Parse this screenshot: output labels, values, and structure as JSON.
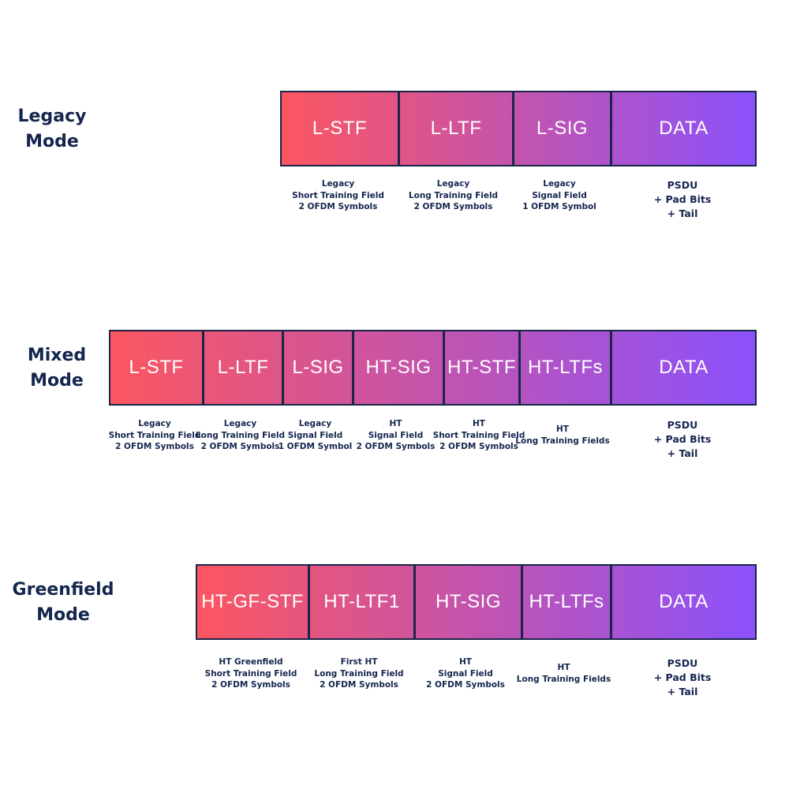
{
  "modes": [
    {
      "label": "Legacy\nMode",
      "fields": [
        {
          "name": "L-STF",
          "desc": "Legacy\nShort Training Field\n2 OFDM Symbols"
        },
        {
          "name": "L-LTF",
          "desc": "Legacy\nLong Training Field\n2 OFDM Symbols"
        },
        {
          "name": "L-SIG",
          "desc": "Legacy\nSignal Field\n1 OFDM Symbol"
        },
        {
          "name": "DATA",
          "desc": "PSDU\n+ Pad Bits\n+ Tail"
        }
      ]
    },
    {
      "label": "Mixed\nMode",
      "fields": [
        {
          "name": "L-STF",
          "desc": "Legacy\nShort Training Field\n2 OFDM Symbols"
        },
        {
          "name": "L-LTF",
          "desc": "Legacy\nLong Training Field\n2 OFDM Symbols"
        },
        {
          "name": "L-SIG",
          "desc": "Legacy\nSignal Field\n1 OFDM Symbol"
        },
        {
          "name": "HT-SIG",
          "desc": "HT\nSignal Field\n2 OFDM Symbols"
        },
        {
          "name": "HT-STF",
          "desc": "HT\nShort Training Field\n2 OFDM Symbols"
        },
        {
          "name": "HT-LTFs",
          "desc": "HT\nLong Training Fields"
        },
        {
          "name": "DATA",
          "desc": "PSDU\n+ Pad Bits\n+ Tail"
        }
      ]
    },
    {
      "label": "Greenfield\nMode",
      "fields": [
        {
          "name": "HT-GF-STF",
          "desc": "HT  Greenfield\nShort Training Field\n2 OFDM Symbols"
        },
        {
          "name": "HT-LTF1",
          "desc": "First HT\nLong Training Field\n2 OFDM Symbols"
        },
        {
          "name": "HT-SIG",
          "desc": "HT\nSignal Field\n2 OFDM Symbols"
        },
        {
          "name": "HT-LTFs",
          "desc": "HT\nLong Training Fields"
        },
        {
          "name": "DATA",
          "desc": "PSDU\n+ Pad Bits\n+ Tail"
        }
      ]
    }
  ],
  "colors": {
    "gradient_start": "#fb5660",
    "gradient_end": "#8b52fb",
    "border": "#1a2548",
    "text": "#14264e"
  }
}
